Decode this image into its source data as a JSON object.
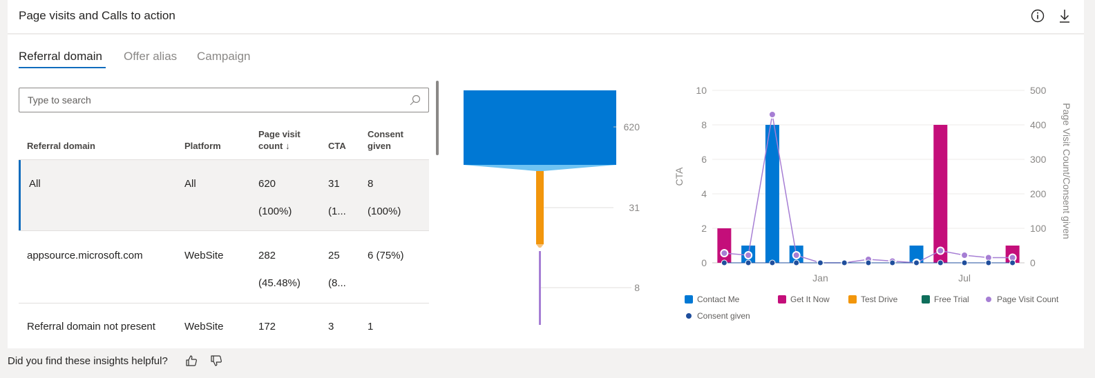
{
  "card": {
    "title": "Page visits and Calls to action",
    "info_icon": "info-icon",
    "download_icon": "download-icon"
  },
  "tabs": [
    {
      "label": "Referral domain",
      "active": true
    },
    {
      "label": "Offer alias",
      "active": false
    },
    {
      "label": "Campaign",
      "active": false
    }
  ],
  "search": {
    "placeholder": "Type to search",
    "value": ""
  },
  "table": {
    "headers": {
      "domain": "Referral domain",
      "platform": "Platform",
      "visits_line1": "Page visit",
      "visits_line2": "count ↓",
      "cta": "CTA",
      "consent_line1": "Consent",
      "consent_line2": "given"
    },
    "rows": [
      {
        "domain": "All",
        "platform": "All",
        "visits": "620",
        "visits_pct": "(100%)",
        "cta": "31",
        "cta_pct": "(1...",
        "consent": "8",
        "consent_pct": "(100%)"
      },
      {
        "domain": "appsource.microsoft.com",
        "platform": "WebSite",
        "visits": "282",
        "visits_pct": "(45.48%)",
        "cta": "25",
        "cta_pct": "(8...",
        "consent": "6 (75%)",
        "consent_pct": ""
      },
      {
        "domain": "Referral domain not present",
        "platform": "WebSite",
        "visits": "172",
        "visits_pct": "",
        "cta": "3",
        "cta_pct": "",
        "consent": "1",
        "consent_pct": ""
      }
    ]
  },
  "chart_data": [
    {
      "type": "funnel",
      "stages": [
        {
          "value": 620,
          "label": "620",
          "color": "#0078d4"
        },
        {
          "value": 31,
          "label": "31",
          "color": "#f2960c"
        },
        {
          "value": 8,
          "label": "8",
          "color": "#a67ed4"
        }
      ]
    },
    {
      "type": "bar",
      "categories": [
        "",
        "",
        "",
        "",
        "",
        "",
        "",
        "",
        "",
        "",
        "",
        "",
        ""
      ],
      "x_tick_labels": [
        {
          "index": 4,
          "label": "Jan"
        },
        {
          "index": 10,
          "label": "Jul"
        }
      ],
      "ylabel": "CTA",
      "y2label": "Page Visit Count/Consent given",
      "ylim": [
        0,
        10
      ],
      "y_ticks": [
        0,
        2,
        4,
        6,
        8,
        10
      ],
      "y2lim": [
        0,
        500
      ],
      "y2_ticks": [
        0,
        100,
        200,
        300,
        400,
        500
      ],
      "grid": true,
      "legend_position": "bottom",
      "series": [
        {
          "name": "Contact Me",
          "type": "bar",
          "color": "#0078d4",
          "values": [
            0,
            1,
            8,
            1,
            0,
            0,
            0,
            0,
            1,
            0,
            0,
            0,
            0
          ]
        },
        {
          "name": "Get It Now",
          "type": "bar",
          "color": "#c40e7a",
          "values": [
            2,
            0,
            0,
            0,
            0,
            0,
            0,
            0,
            0,
            8,
            0,
            0,
            1
          ]
        },
        {
          "name": "Test Drive",
          "type": "bar",
          "color": "#f2960c",
          "values": [
            0,
            0,
            0,
            0,
            0,
            0,
            0,
            0,
            0,
            0,
            0,
            0,
            0
          ]
        },
        {
          "name": "Free Trial",
          "type": "bar",
          "color": "#0e6e5b",
          "values": [
            0,
            0,
            0,
            0,
            0,
            0,
            0,
            0,
            0,
            0,
            0,
            0,
            0
          ]
        },
        {
          "name": "Page Visit Count",
          "type": "line",
          "axis": "right",
          "color": "#a67ed4",
          "values": [
            28,
            22,
            430,
            22,
            0,
            0,
            10,
            5,
            0,
            35,
            22,
            15,
            15
          ]
        },
        {
          "name": "Consent given",
          "type": "line",
          "axis": "right",
          "color": "#1f4e9c",
          "values": [
            0,
            0,
            0,
            0,
            0,
            0,
            0,
            0,
            0,
            0,
            0,
            0,
            0
          ]
        }
      ]
    }
  ],
  "footer": {
    "question": "Did you find these insights helpful?",
    "thumbs_up_icon": "thumbs-up-icon",
    "thumbs_down_icon": "thumbs-down-icon"
  }
}
